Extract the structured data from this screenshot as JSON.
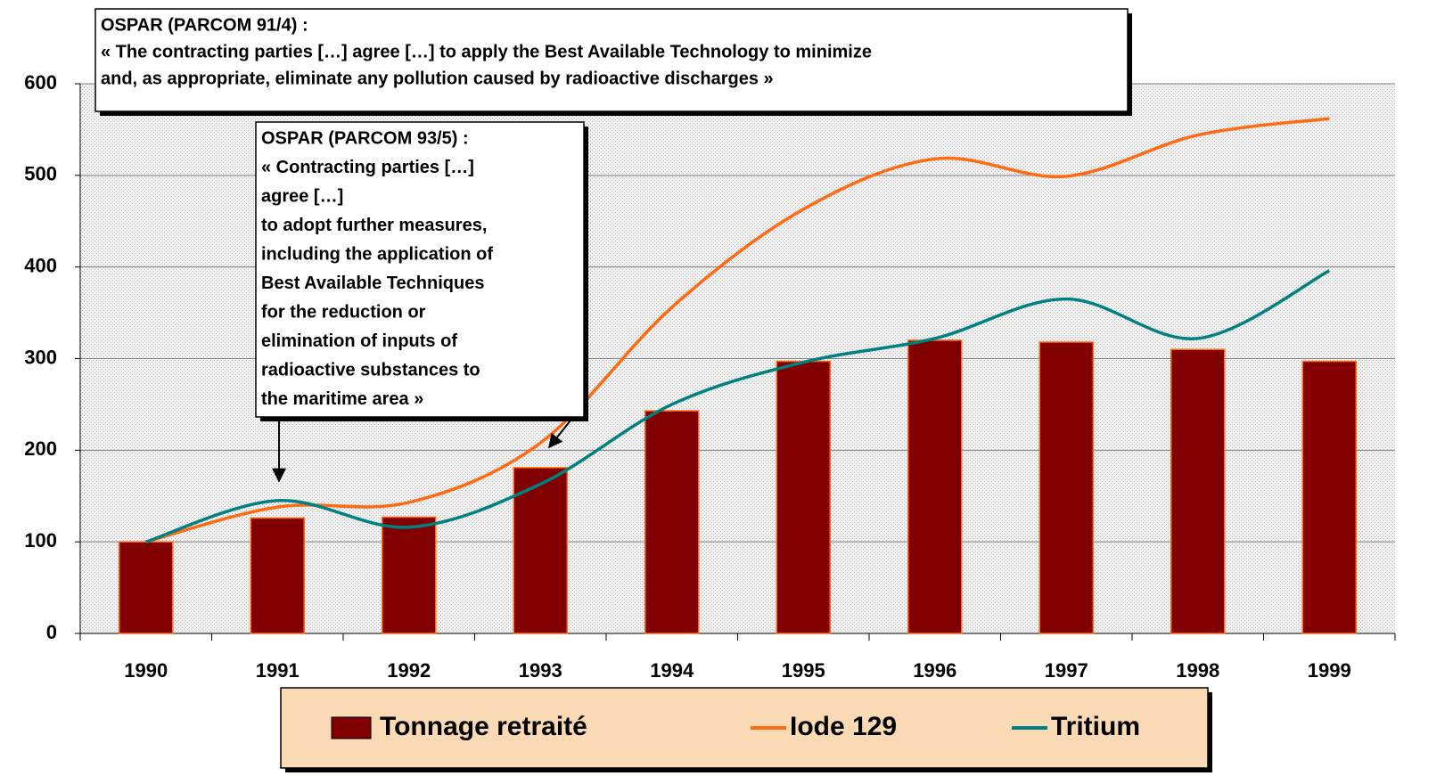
{
  "chart_data": {
    "type": "bar",
    "categories": [
      "1990",
      "1991",
      "1992",
      "1993",
      "1994",
      "1995",
      "1996",
      "1997",
      "1998",
      "1999"
    ],
    "series": [
      {
        "name": "Tonnage retraité",
        "type": "bar",
        "color": "#800000",
        "values": [
          100,
          126,
          127,
          181,
          243,
          297,
          320,
          318,
          310,
          297
        ]
      },
      {
        "name": "Iode 129",
        "type": "line",
        "color": "#ff6a13",
        "values": [
          100,
          138,
          143,
          208,
          356,
          463,
          518,
          499,
          544,
          562
        ]
      },
      {
        "name": "Tritium",
        "type": "line",
        "color": "#008080",
        "values": [
          100,
          145,
          116,
          163,
          250,
          296,
          322,
          365,
          322,
          396
        ]
      }
    ],
    "ylim": [
      0,
      600
    ],
    "yticks": [
      0,
      100,
      200,
      300,
      400,
      500,
      600
    ],
    "grid": true,
    "annotations": [
      {
        "lines": [
          "OSPAR (PARCOM 91/4) :",
          "« The contracting parties […] agree […] to apply the Best Available Technology to minimize",
          "and, as appropriate, eliminate any pollution caused by radioactive discharges »"
        ]
      },
      {
        "lines": [
          "OSPAR (PARCOM 93/5) :",
          "« Contracting parties […]",
          "agree […]",
          "to adopt further measures,",
          "including the application of",
          "Best Available Techniques",
          "for the reduction or",
          "elimination of inputs of",
          "radioactive substances to",
          "the maritime area »"
        ]
      }
    ]
  }
}
